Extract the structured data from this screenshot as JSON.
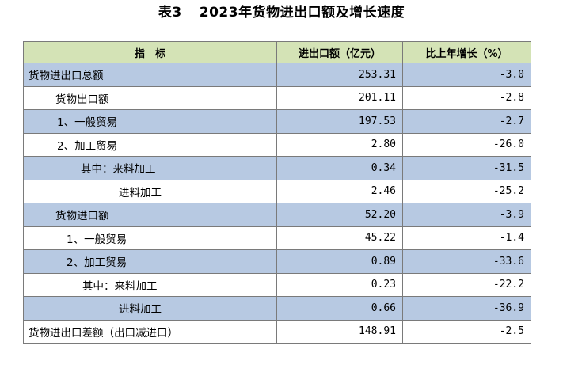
{
  "title": {
    "number": "表3",
    "text": "2023年货物进出口额及增长速度"
  },
  "table": {
    "headers": [
      "指　标",
      "进出口额（亿元）",
      "比上年增长（%）"
    ],
    "rows": [
      {
        "name": "货物进出口总额",
        "value": "253.31",
        "growth": "-3.0"
      },
      {
        "name": "货物出口额",
        "value": "201.11",
        "growth": "-2.8"
      },
      {
        "name": "1、一般贸易",
        "value": "197.53",
        "growth": "-2.7"
      },
      {
        "name": "2、加工贸易",
        "value": "2.80",
        "growth": "-26.0"
      },
      {
        "name": "其中：来料加工",
        "value": "0.34",
        "growth": "-31.5"
      },
      {
        "name": "进料加工",
        "value": "2.46",
        "growth": "-25.2"
      },
      {
        "name": "货物进口额",
        "value": "52.20",
        "growth": "-3.9"
      },
      {
        "name": "1、一般贸易",
        "value": "45.22",
        "growth": "-1.4"
      },
      {
        "name": "2、加工贸易",
        "value": "0.89",
        "growth": "-33.6"
      },
      {
        "name": "其中：来料加工",
        "value": "0.23",
        "growth": "-22.2"
      },
      {
        "name": "进料加工",
        "value": "0.66",
        "growth": "-36.9"
      },
      {
        "name": "货物进出口差额（出口减进口）",
        "value": "148.91",
        "growth": "-2.5"
      }
    ]
  },
  "colors": {
    "header_background": "#d4e3b6",
    "shaded_row_background": "#b7c9e2",
    "border": "#7a7a7a"
  }
}
